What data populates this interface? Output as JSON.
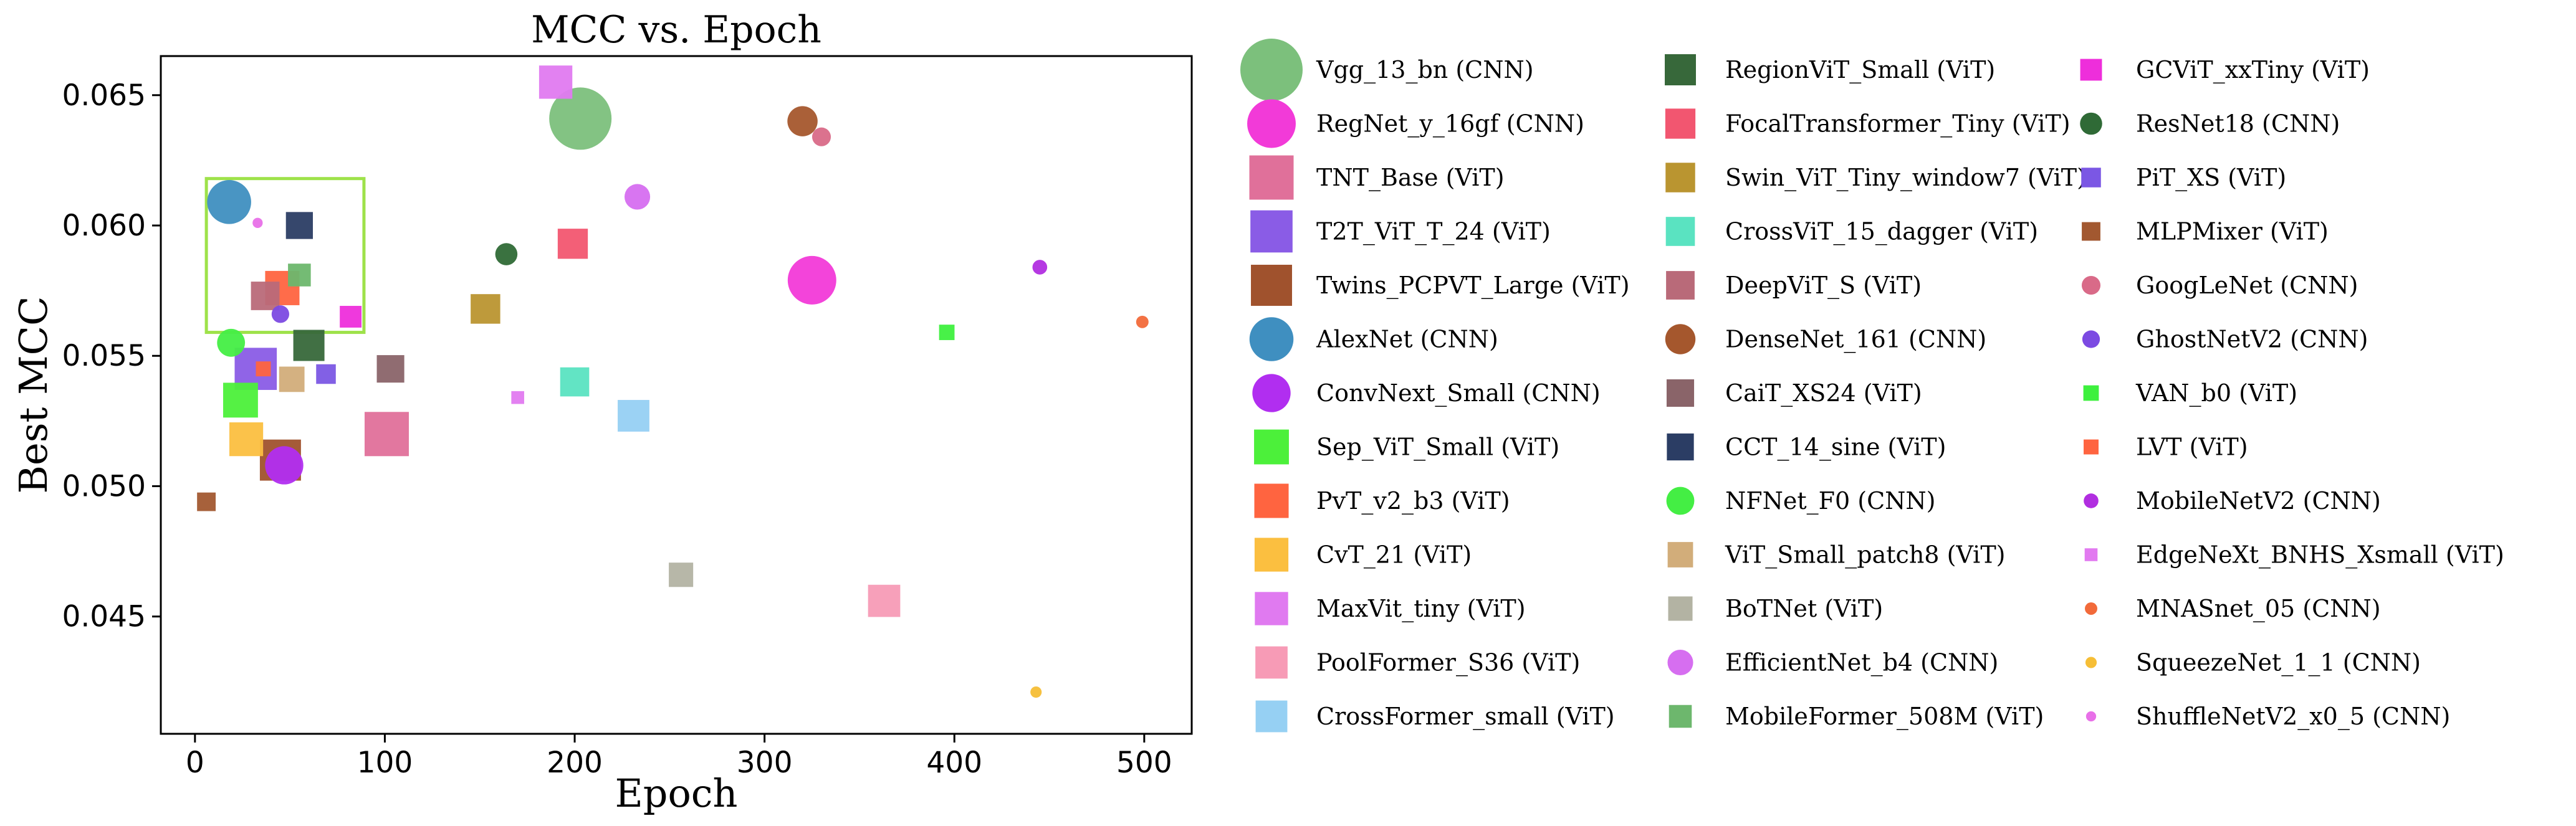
{
  "chart_data": {
    "type": "scatter",
    "title": "MCC vs. Epoch",
    "xlabel": "Epoch",
    "ylabel": "Best MCC",
    "xlim": [
      -18,
      525
    ],
    "ylim": [
      0.0405,
      0.0665
    ],
    "xticks": [
      0,
      100,
      200,
      300,
      400,
      500
    ],
    "yticks": [
      0.045,
      0.05,
      0.055,
      0.06,
      0.065
    ],
    "ytick_labels": [
      "0.045",
      "0.050",
      "0.055",
      "0.060",
      "0.065"
    ],
    "grid": false,
    "highlight_box": {
      "x": [
        6,
        89
      ],
      "y": [
        0.0559,
        0.0618
      ],
      "color": "#9ee24a"
    },
    "legend_position": "right, outside plot, 3 columns",
    "series": [
      {
        "name": "Vgg_13_bn (CNN)",
        "marker": "circle",
        "color": "#7cc07c",
        "size": 1.0,
        "x": 203,
        "y": 0.0641
      },
      {
        "name": "RegNet_y_16gf (CNN)",
        "marker": "circle",
        "color": "#f23ad8",
        "size": 0.76,
        "x": 325,
        "y": 0.0579
      },
      {
        "name": "TNT_Base (ViT)",
        "marker": "square",
        "color": "#e0709a",
        "size": 0.75,
        "x": 101,
        "y": 0.052
      },
      {
        "name": "T2T_ViT_T_24 (ViT)",
        "marker": "square",
        "color": "#8a5ce6",
        "size": 0.71,
        "x": 32,
        "y": 0.0545
      },
      {
        "name": "Twins_PCPVT_Large (ViT)",
        "marker": "square",
        "color": "#a0522d",
        "size": 0.69,
        "x": 45,
        "y": 0.051
      },
      {
        "name": "AlexNet (CNN)",
        "marker": "circle",
        "color": "#3f8fc0",
        "size": 0.68,
        "x": 18,
        "y": 0.0609
      },
      {
        "name": "ConvNext_Small (CNN)",
        "marker": "circle",
        "color": "#b12ef0",
        "size": 0.58,
        "x": 47,
        "y": 0.0508
      },
      {
        "name": "Sep_ViT_Small (ViT)",
        "marker": "square",
        "color": "#4cf03a",
        "size": 0.57,
        "x": 24,
        "y": 0.0533
      },
      {
        "name": "PvT_v2_b3 (ViT)",
        "marker": "square",
        "color": "#ff6440",
        "size": 0.56,
        "x": 46,
        "y": 0.0576
      },
      {
        "name": "CvT_21 (ViT)",
        "marker": "square",
        "color": "#fbbf40",
        "size": 0.55,
        "x": 27,
        "y": 0.0518
      },
      {
        "name": "MaxVit_tiny (ViT)",
        "marker": "square",
        "color": "#e07af0",
        "size": 0.54,
        "x": 190,
        "y": 0.0655
      },
      {
        "name": "PoolFormer_S36 (ViT)",
        "marker": "square",
        "color": "#f79bb6",
        "size": 0.52,
        "x": 363,
        "y": 0.0456
      },
      {
        "name": "CrossFormer_small (ViT)",
        "marker": "square",
        "color": "#96d0f3",
        "size": 0.51,
        "x": 231,
        "y": 0.0527
      },
      {
        "name": "RegionViT_Small (ViT)",
        "marker": "square",
        "color": "#37683a",
        "size": 0.5,
        "x": 60,
        "y": 0.0554
      },
      {
        "name": "FocalTransformer_Tiny (ViT)",
        "marker": "square",
        "color": "#f25670",
        "size": 0.48,
        "x": 199,
        "y": 0.0593
      },
      {
        "name": "Swin_ViT_Tiny_window7 (ViT)",
        "marker": "square",
        "color": "#ba9530",
        "size": 0.47,
        "x": 153,
        "y": 0.0568
      },
      {
        "name": "CrossViT_15_dagger (ViT)",
        "marker": "square",
        "color": "#5ae3c1",
        "size": 0.46,
        "x": 200,
        "y": 0.054
      },
      {
        "name": "DeepViT_S (ViT)",
        "marker": "square",
        "color": "#b96a79",
        "size": 0.45,
        "x": 37,
        "y": 0.0573
      },
      {
        "name": "DenseNet_161 (CNN)",
        "marker": "circle",
        "color": "#a5572d",
        "size": 0.44,
        "x": 320,
        "y": 0.064
      },
      {
        "name": "CaiT_XS24 (ViT)",
        "marker": "square",
        "color": "#8a6469",
        "size": 0.43,
        "x": 103,
        "y": 0.0545
      },
      {
        "name": "CCT_14_sine (ViT)",
        "marker": "square",
        "color": "#2b3d64",
        "size": 0.42,
        "x": 55,
        "y": 0.06
      },
      {
        "name": "NFNet_F0 (CNN)",
        "marker": "circle",
        "color": "#44ee44",
        "size": 0.4,
        "x": 19,
        "y": 0.0555
      },
      {
        "name": "ViT_Small_patch8 (ViT)",
        "marker": "square",
        "color": "#d2ad7a",
        "size": 0.39,
        "x": 51,
        "y": 0.0541
      },
      {
        "name": "BoTNet (ViT)",
        "marker": "square",
        "color": "#b3b3a3",
        "size": 0.37,
        "x": 256,
        "y": 0.0466
      },
      {
        "name": "EfficientNet_b4 (CNN)",
        "marker": "circle",
        "color": "#d66ef0",
        "size": 0.36,
        "x": 233,
        "y": 0.0611
      },
      {
        "name": "MobileFormer_508M (ViT)",
        "marker": "square",
        "color": "#6db76d",
        "size": 0.34,
        "x": 55,
        "y": 0.0581
      },
      {
        "name": "GCViT_xxTiny (ViT)",
        "marker": "square",
        "color": "#ee2edb",
        "size": 0.32,
        "x": 82,
        "y": 0.0565
      },
      {
        "name": "ResNet18 (CNN)",
        "marker": "circle",
        "color": "#2f6a36",
        "size": 0.3,
        "x": 164,
        "y": 0.0589
      },
      {
        "name": "PiT_XS (ViT)",
        "marker": "square",
        "color": "#7b57e4",
        "size": 0.28,
        "x": 69,
        "y": 0.0543
      },
      {
        "name": "MLPMixer (ViT)",
        "marker": "square",
        "color": "#a25830",
        "size": 0.26,
        "x": 6,
        "y": 0.0494
      },
      {
        "name": "GoogLeNet (CNN)",
        "marker": "circle",
        "color": "#d96a88",
        "size": 0.24,
        "x": 330,
        "y": 0.0634
      },
      {
        "name": "GhostNetV2 (CNN)",
        "marker": "circle",
        "color": "#7c4ae2",
        "size": 0.22,
        "x": 45,
        "y": 0.0566
      },
      {
        "name": "VAN_b0 (ViT)",
        "marker": "square",
        "color": "#3ef03e",
        "size": 0.2,
        "x": 396,
        "y": 0.0559
      },
      {
        "name": "LVT (ViT)",
        "marker": "square",
        "color": "#ff6440",
        "size": 0.19,
        "x": 36,
        "y": 0.0545
      },
      {
        "name": "MobileNetV2 (CNN)",
        "marker": "circle",
        "color": "#b12ee0",
        "size": 0.17,
        "x": 445,
        "y": 0.0584
      },
      {
        "name": "EdgeNeXt_BNHS_Xsmall (ViT)",
        "marker": "square",
        "color": "#e27af0",
        "size": 0.15,
        "x": 170,
        "y": 0.0534
      },
      {
        "name": "MNASnet_05 (CNN)",
        "marker": "circle",
        "color": "#f26a3a",
        "size": 0.13,
        "x": 499,
        "y": 0.0563
      },
      {
        "name": "SqueezeNet_1_1 (CNN)",
        "marker": "circle",
        "color": "#f6be36",
        "size": 0.11,
        "x": 443,
        "y": 0.0421
      },
      {
        "name": "ShuffleNetV2_x0_5 (CNN)",
        "marker": "circle",
        "color": "#e870e8",
        "size": 0.09,
        "x": 33,
        "y": 0.0601
      }
    ]
  }
}
